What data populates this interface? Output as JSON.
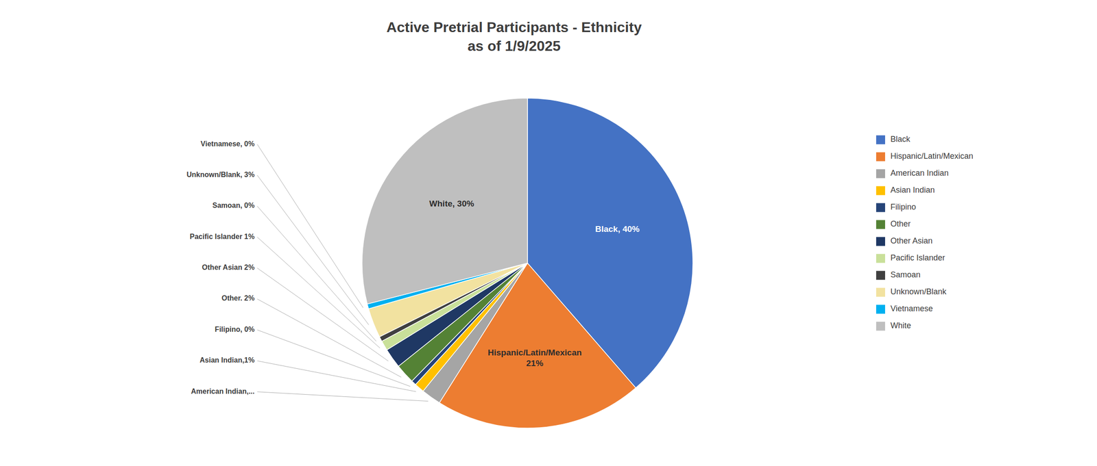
{
  "chart_data": {
    "type": "pie",
    "title": "Active Pretrial Participants - Ethnicity\nas of 1/9/2025",
    "categories": [
      "Black",
      "Hispanic/Latin/Mexican",
      "American Indian",
      "Asian Indian",
      "Filipino",
      "Other",
      "Other Asian",
      "Pacific Islander",
      "Samoan",
      "Unknown/Blank",
      "Vietnamese",
      "White"
    ],
    "values": [
      40,
      21,
      2,
      1,
      0.5,
      2,
      2,
      1,
      0.5,
      3,
      0.5,
      30
    ],
    "value_labels": [
      "Black, 40%",
      "Hispanic/Latin/Mexican\n21%",
      "American Indian,...",
      "Asian Indian,1%",
      "Filipino, 0%",
      "Other. 2%",
      "Other Asian 2%",
      "Pacific Islander 1%",
      "Samoan, 0%",
      "Unknown/Blank, 3%",
      "Vietnamese, 0%",
      "White, 30%"
    ],
    "colors": [
      "#4472C4",
      "#ED7D31",
      "#A5A5A5",
      "#FFC000",
      "#264478",
      "#548235",
      "#1F3864",
      "#C9E09A",
      "#404040",
      "#F2E2A0",
      "#00B0F0",
      "#BFBFBF"
    ],
    "data_labels": true,
    "legend": "right"
  }
}
